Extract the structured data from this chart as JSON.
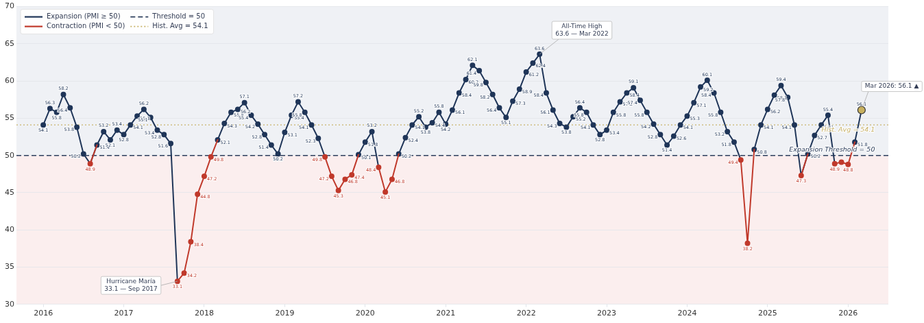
{
  "chart_data": {
    "type": "line",
    "x": [
      "2016-01",
      "2016-02",
      "2016-03",
      "2016-04",
      "2016-05",
      "2016-06",
      "2016-07",
      "2016-08",
      "2016-09",
      "2016-10",
      "2016-11",
      "2016-12",
      "2017-01",
      "2017-02",
      "2017-03",
      "2017-04",
      "2017-05",
      "2017-06",
      "2017-07",
      "2017-08",
      "2017-09",
      "2017-10",
      "2017-11",
      "2017-12",
      "2018-01",
      "2018-02",
      "2018-03",
      "2018-04",
      "2018-05",
      "2018-06",
      "2018-07",
      "2018-08",
      "2018-09",
      "2018-10",
      "2018-11",
      "2018-12",
      "2019-01",
      "2019-02",
      "2019-03",
      "2019-04",
      "2019-05",
      "2019-06",
      "2019-07",
      "2019-08",
      "2019-09",
      "2019-10",
      "2019-11",
      "2019-12",
      "2020-01",
      "2020-02",
      "2020-03",
      "2020-04",
      "2020-05",
      "2020-06",
      "2020-07",
      "2020-08",
      "2020-09",
      "2020-10",
      "2020-11",
      "2020-12",
      "2021-01",
      "2021-02",
      "2021-03",
      "2021-04",
      "2021-05",
      "2021-06",
      "2021-07",
      "2021-08",
      "2021-09",
      "2021-10",
      "2021-11",
      "2021-12",
      "2022-01",
      "2022-02",
      "2022-03",
      "2022-04",
      "2022-05",
      "2022-06",
      "2022-07",
      "2022-08",
      "2022-09",
      "2022-10",
      "2022-11",
      "2022-12",
      "2023-01",
      "2023-02",
      "2023-03",
      "2023-04",
      "2023-05",
      "2023-06",
      "2023-07",
      "2023-08",
      "2023-09",
      "2023-10",
      "2023-11",
      "2023-12",
      "2024-01",
      "2024-02",
      "2024-03",
      "2024-04",
      "2024-05",
      "2024-06",
      "2024-07",
      "2024-08",
      "2024-09",
      "2024-10",
      "2024-11",
      "2024-12",
      "2025-01",
      "2025-02",
      "2025-03",
      "2025-04",
      "2025-05",
      "2025-06",
      "2025-07",
      "2025-08",
      "2025-09",
      "2025-10",
      "2025-11",
      "2025-12",
      "2026-01",
      "2026-02",
      "2026-03"
    ],
    "series": [
      {
        "name": "Expansion (PMI ≥ 50)",
        "color": "#1f3558",
        "values": [
          54.1,
          56.3,
          55.8,
          58.2,
          56.4,
          53.8,
          50.2,
          48.9,
          51.4,
          53.2,
          52.1,
          53.4,
          52.8,
          54.1,
          55.3,
          56.2,
          55.1,
          53.4,
          52.8,
          51.6,
          33.1,
          null,
          null,
          null,
          null,
          null,
          52.1,
          54.3,
          55.8,
          56.2,
          57.1,
          55.4,
          54.2,
          52.8,
          51.4,
          50.2,
          53.1,
          55.4,
          57.2,
          55.8,
          54.1,
          52.3,
          49.8,
          null,
          null,
          null,
          null,
          50.1,
          51.8,
          53.2,
          48.4,
          null,
          null,
          50.2,
          52.4,
          54.1,
          55.2,
          53.8,
          54.4,
          55.8,
          54.2,
          56.1,
          58.4,
          60.2,
          62.1,
          61.4,
          59.8,
          58.2,
          56.4,
          55.1,
          57.3,
          58.9,
          61.2,
          62.4,
          63.6,
          58.4,
          56.1,
          54.3,
          53.8,
          55.2,
          56.4,
          55.8,
          54.1,
          52.8,
          53.4,
          55.8,
          57.2,
          58.4,
          59.1,
          57.4,
          55.8,
          54.2,
          52.8,
          51.4,
          52.6,
          54.1,
          55.3,
          57.1,
          59.2,
          60.1,
          58.4,
          55.8,
          53.2,
          51.8,
          49.4,
          null,
          50.8,
          54.1,
          56.2,
          58.1,
          59.4,
          57.8,
          54.1,
          47.3,
          50.2,
          52.7,
          54.1,
          55.4,
          48.9,
          null,
          null,
          51.8,
          56.1
        ],
        "value_labels": [
          "54.1",
          "56.3",
          "55.8",
          "58.2",
          "56.4",
          "53.8",
          "50.2",
          null,
          "51.4",
          "53.2",
          "52.1",
          "53.4",
          "52.8",
          "54.1",
          "55.3",
          "56.2",
          "55.1",
          "53.4",
          "52.8",
          "51.6",
          null,
          null,
          null,
          null,
          null,
          null,
          "52.1",
          "54.3",
          "55.8",
          "56.2",
          "57.1",
          "55.4",
          "54.2",
          "52.8",
          "51.4",
          "50.2",
          "53.1",
          "55.4",
          "57.2",
          "55.8",
          "54.1",
          "52.3",
          null,
          null,
          null,
          null,
          null,
          "50.1",
          "51.8",
          "53.2",
          null,
          null,
          null,
          "50.2",
          "52.4",
          "54.1",
          "55.2",
          "53.8",
          "54.4",
          "55.8",
          "54.2",
          "56.1",
          "58.4",
          "60.2",
          "62.1",
          "61.4",
          "59.8",
          "58.2",
          "56.4",
          "55.1",
          "57.3",
          "58.9",
          "61.2",
          "62.4",
          "63.6",
          "58.4",
          "56.1",
          "54.3",
          "53.8",
          "55.2",
          "56.4",
          "55.8",
          "54.1",
          "52.8",
          "53.4",
          "55.8",
          "57.2",
          "58.4",
          "59.1",
          "57.4",
          "55.8",
          "54.2",
          "52.8",
          "51.4",
          "52.6",
          "54.1",
          "55.3",
          "57.1",
          "59.2",
          "60.1",
          "58.4",
          "55.8",
          "53.2",
          "51.8",
          null,
          null,
          "50.8",
          "54.1",
          "56.2",
          "58.1",
          "59.4",
          "57.8",
          "54.1",
          null,
          "50.2",
          "52.7",
          "54.1",
          "55.4",
          null,
          null,
          null,
          "51.8",
          "56.1"
        ]
      },
      {
        "name": "Contraction (PMI < 50)",
        "color": "#c0392b",
        "values": [
          null,
          null,
          null,
          null,
          null,
          null,
          null,
          48.9,
          51.4,
          null,
          null,
          null,
          null,
          null,
          null,
          null,
          null,
          null,
          null,
          null,
          33.1,
          34.2,
          38.4,
          44.8,
          47.2,
          49.8,
          52.1,
          null,
          null,
          null,
          null,
          null,
          null,
          null,
          null,
          null,
          null,
          null,
          null,
          null,
          null,
          null,
          49.8,
          47.2,
          45.3,
          46.8,
          47.4,
          50.1,
          null,
          null,
          48.4,
          45.1,
          46.8,
          50.2,
          null,
          null,
          null,
          null,
          null,
          null,
          null,
          null,
          null,
          null,
          null,
          null,
          null,
          null,
          null,
          null,
          null,
          null,
          null,
          null,
          null,
          null,
          null,
          null,
          null,
          null,
          null,
          null,
          null,
          null,
          null,
          null,
          null,
          null,
          null,
          null,
          null,
          null,
          null,
          null,
          null,
          null,
          null,
          null,
          null,
          null,
          null,
          null,
          null,
          null,
          49.4,
          38.2,
          50.8,
          null,
          null,
          null,
          null,
          null,
          null,
          47.3,
          50.2,
          null,
          null,
          null,
          48.9,
          49.1,
          48.8,
          51.8,
          null
        ],
        "value_labels": [
          null,
          null,
          null,
          null,
          null,
          null,
          null,
          "48.9",
          null,
          null,
          null,
          null,
          null,
          null,
          null,
          null,
          null,
          null,
          null,
          null,
          "33.1",
          "34.2",
          "38.4",
          "44.8",
          "47.2",
          "49.8",
          null,
          null,
          null,
          null,
          null,
          null,
          null,
          null,
          null,
          null,
          null,
          null,
          null,
          null,
          null,
          null,
          "49.8",
          "47.2",
          "45.3",
          "46.8",
          "47.4",
          null,
          null,
          null,
          "48.4",
          "45.1",
          "46.8",
          null,
          null,
          null,
          null,
          null,
          null,
          null,
          null,
          null,
          null,
          null,
          null,
          null,
          null,
          null,
          null,
          null,
          null,
          null,
          null,
          null,
          null,
          null,
          null,
          null,
          null,
          null,
          null,
          null,
          null,
          null,
          null,
          null,
          null,
          null,
          null,
          null,
          null,
          null,
          null,
          null,
          null,
          null,
          null,
          null,
          null,
          null,
          null,
          null,
          null,
          null,
          "49.4",
          "38.2",
          null,
          null,
          null,
          null,
          null,
          null,
          null,
          "47.3",
          null,
          null,
          null,
          null,
          "48.9",
          null,
          "48.8",
          null,
          null
        ]
      }
    ],
    "xlim": [
      "2015-09",
      "2026-07"
    ],
    "xticks": [
      "2016",
      "2017",
      "2018",
      "2019",
      "2020",
      "2021",
      "2022",
      "2023",
      "2024",
      "2025",
      "2026"
    ],
    "ylim": [
      30,
      70
    ],
    "yticks": [
      30,
      35,
      40,
      45,
      50,
      55,
      60,
      65,
      70
    ],
    "grid": "y",
    "legend": "top left",
    "marker": "circle",
    "line_style": "solid",
    "bands": [
      {
        "axis": "y",
        "from": 50,
        "to": 70,
        "color": "#eff1f5"
      },
      {
        "axis": "y",
        "from": 30,
        "to": 50,
        "color": "#fbeeee"
      }
    ],
    "ref_lines": [
      {
        "axis": "y",
        "value": 50,
        "label": "Threshold = 50",
        "color": "#2c3e5c",
        "line_style": "dashed"
      },
      {
        "axis": "y",
        "value": 54.1,
        "label": "Hist. Avg = 54.1",
        "color": "#c9b36a",
        "line_style": "dotted"
      }
    ],
    "annotations": [
      {
        "text": "Hurricane María\n33.1 — Sep 2017",
        "x": "2017-09",
        "y": 33.1
      },
      {
        "text": "All-Time High\n63.6 — Mar 2022",
        "x": "2022-03",
        "y": 63.6
      },
      {
        "text": "Mar 2026: 56.1 ▲",
        "x": "2026-03",
        "y": 56.1
      },
      {
        "text": "Expansion Threshold = 50",
        "x": "2026-05",
        "y": 50
      },
      {
        "text": "Hist. Avg = 54.1",
        "x": "2026-05",
        "y": 54.1
      }
    ]
  }
}
